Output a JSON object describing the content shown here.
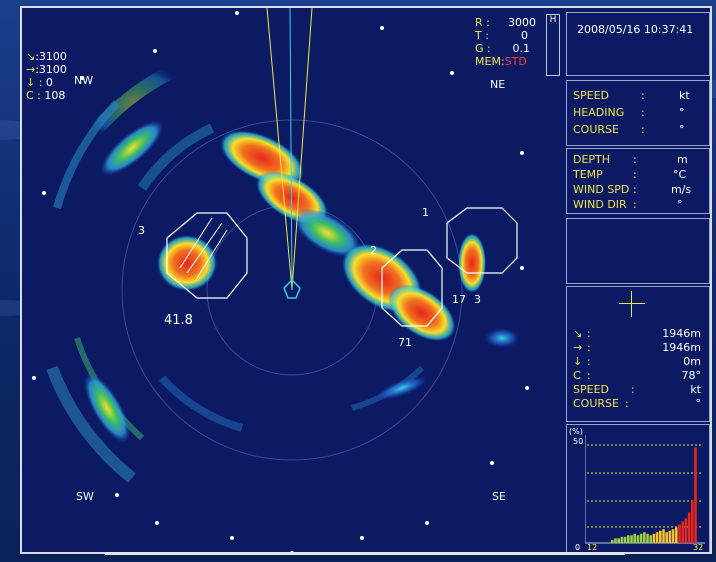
{
  "sonar": {
    "range_block": {
      "r_label": "R",
      "r_value": "3000",
      "t_label": "T",
      "t_value": "0",
      "g_label": "G",
      "g_value": "0.1",
      "mem_label": "MEM:",
      "mem_value": "STD",
      "h_label": "H"
    },
    "left_readout": {
      "line1_icon": "↘",
      "line1_value": ":3100",
      "line2_icon": "→",
      "line2_value": ":3100",
      "line3_icon": "↓",
      "line3_value": "0",
      "line4_label": "C :",
      "line4_value": "108"
    },
    "compass": {
      "nw": "NW",
      "ne": "NE",
      "sw": "SW",
      "se": "SE"
    },
    "targets": {
      "t1": "1",
      "t2": "2",
      "t3": "3",
      "t3_right": "3",
      "t17": "17",
      "t71": "71",
      "t41": "41.8"
    }
  },
  "panel": {
    "datetime": "2008/05/16 10:37:41",
    "nav": [
      {
        "label": "SPEED",
        "sep": ":",
        "unit": "kt"
      },
      {
        "label": "HEADING",
        "sep": ":",
        "unit": "°"
      },
      {
        "label": "COURSE",
        "sep": ":",
        "unit": "°"
      }
    ],
    "env": [
      {
        "label": "DEPTH",
        "sep": ":",
        "unit": "m"
      },
      {
        "label": "TEMP",
        "sep": ":",
        "unit": "°C"
      },
      {
        "label": "WIND SPD",
        "sep": ":",
        "unit": "m/s"
      },
      {
        "label": "WIND DIR",
        "sep": ":",
        "unit": "°"
      }
    ],
    "cursor": [
      {
        "icon": "↘",
        "sep": ":",
        "value": "1946m"
      },
      {
        "icon": "→",
        "sep": ":",
        "value": "1946m"
      },
      {
        "icon": "↓",
        "sep": ":",
        "value": "0m"
      },
      {
        "icon": "C",
        "sep": ":",
        "value": "78°"
      },
      {
        "icon": "SPEED",
        "sep": ":",
        "value": "kt"
      },
      {
        "icon": "COURSE",
        "sep": ":",
        "value": "°"
      }
    ],
    "histogram": {
      "unit_label": "(%)",
      "y_max_label": "50",
      "y_min_label": "0",
      "x_min_label": "12",
      "x_max_label": "32",
      "values": [
        2,
        3,
        3,
        4,
        4,
        5,
        5,
        6,
        5,
        6,
        7,
        6,
        5,
        6,
        7,
        8,
        9,
        7,
        8,
        9,
        10,
        12,
        14,
        16,
        20,
        28,
        62
      ]
    }
  },
  "colors": {
    "screen_bg": "#0c1a63",
    "label_yellow": "#f2e44a",
    "accent_red": "#ff3b3b",
    "echo_red": "#e8261c",
    "echo_yellow": "#f5e02a",
    "echo_cyan": "#2fd0e0"
  }
}
